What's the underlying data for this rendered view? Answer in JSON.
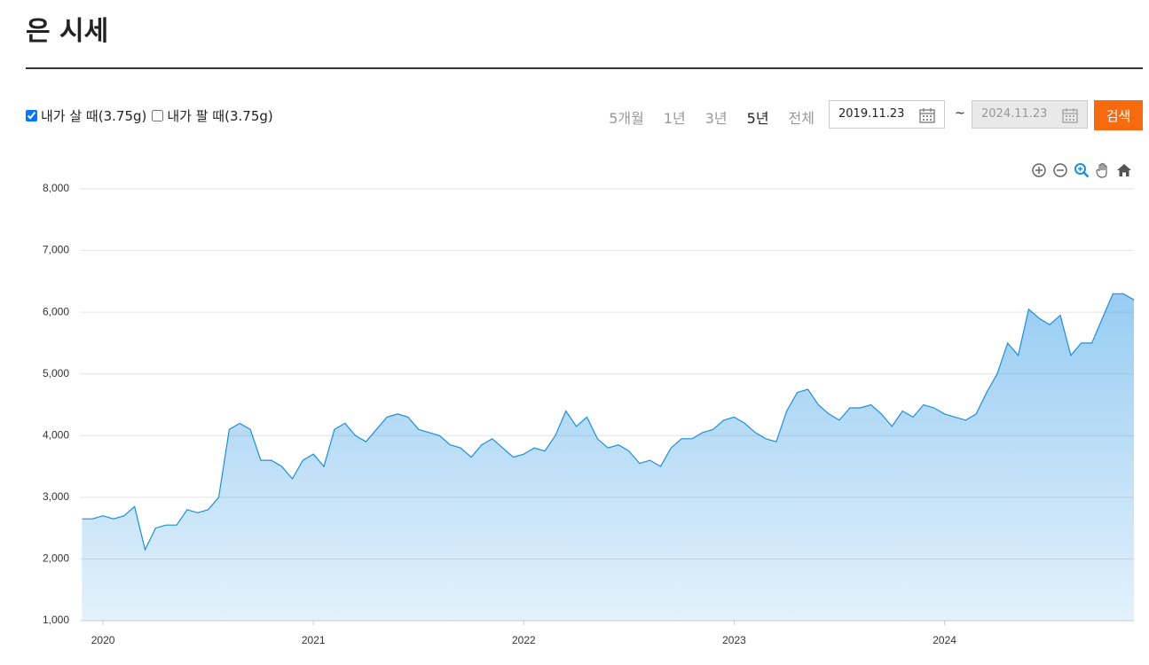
{
  "header": {
    "title": "은 시세"
  },
  "controls": {
    "options": [
      {
        "label": "내가 살 때(3.75g)",
        "checked": true
      },
      {
        "label": "내가 팔 때(3.75g)",
        "checked": false
      }
    ],
    "periods": [
      "5개월",
      "1년",
      "3년",
      "5년",
      "전체"
    ],
    "active_period": 3,
    "start_date": "2019.11.23",
    "separator": "~",
    "end_date": "2024.11.23",
    "search": "검색"
  },
  "chart_data": {
    "type": "area",
    "color": "#1a8fe3",
    "grid": true,
    "xlim": [
      2019.89,
      2024.9
    ],
    "xticks": [
      2020,
      2021,
      2022,
      2023,
      2024
    ],
    "ylim": [
      1000,
      8000
    ],
    "yticks": [
      {
        "value": 1000,
        "label": "1,000"
      },
      {
        "value": 2000,
        "label": "2,000"
      },
      {
        "value": 3000,
        "label": "3,000"
      },
      {
        "value": 4000,
        "label": "4,000"
      },
      {
        "value": 5000,
        "label": "5,000"
      },
      {
        "value": 6000,
        "label": "6,000"
      },
      {
        "value": 7000,
        "label": "7,000"
      },
      {
        "value": 8000,
        "label": "8,000"
      }
    ],
    "x": [
      2019.9,
      2019.95,
      2020.0,
      2020.05,
      2020.1,
      2020.15,
      2020.2,
      2020.25,
      2020.3,
      2020.35,
      2020.4,
      2020.45,
      2020.5,
      2020.55,
      2020.6,
      2020.65,
      2020.7,
      2020.75,
      2020.8,
      2020.85,
      2020.9,
      2020.95,
      2021.0,
      2021.05,
      2021.1,
      2021.15,
      2021.2,
      2021.25,
      2021.3,
      2021.35,
      2021.4,
      2021.45,
      2021.5,
      2021.55,
      2021.6,
      2021.65,
      2021.7,
      2021.75,
      2021.8,
      2021.85,
      2021.9,
      2021.95,
      2022.0,
      2022.05,
      2022.1,
      2022.15,
      2022.2,
      2022.25,
      2022.3,
      2022.35,
      2022.4,
      2022.45,
      2022.5,
      2022.55,
      2022.6,
      2022.65,
      2022.7,
      2022.75,
      2022.8,
      2022.85,
      2022.9,
      2022.95,
      2023.0,
      2023.05,
      2023.1,
      2023.15,
      2023.2,
      2023.25,
      2023.3,
      2023.35,
      2023.4,
      2023.45,
      2023.5,
      2023.55,
      2023.6,
      2023.65,
      2023.7,
      2023.75,
      2023.8,
      2023.85,
      2023.9,
      2023.95,
      2024.0,
      2024.05,
      2024.1,
      2024.15,
      2024.2,
      2024.25,
      2024.3,
      2024.35,
      2024.4,
      2024.45,
      2024.5,
      2024.55,
      2024.6,
      2024.65,
      2024.7,
      2024.75,
      2024.8,
      2024.85,
      2024.9
    ],
    "values": [
      2650,
      2650,
      2700,
      2650,
      2700,
      2850,
      2150,
      2500,
      2550,
      2550,
      2800,
      2750,
      2800,
      3000,
      4100,
      4200,
      4100,
      3600,
      3600,
      3500,
      3300,
      3600,
      3700,
      3500,
      4100,
      4200,
      4000,
      3900,
      4100,
      4300,
      4350,
      4300,
      4100,
      4050,
      4000,
      3850,
      3800,
      3650,
      3850,
      3950,
      3800,
      3650,
      3700,
      3800,
      3750,
      4000,
      4400,
      4150,
      4300,
      3950,
      3800,
      3850,
      3750,
      3550,
      3600,
      3500,
      3800,
      3950,
      3950,
      4050,
      4100,
      4250,
      4300,
      4200,
      4050,
      3950,
      3900,
      4400,
      4700,
      4750,
      4500,
      4350,
      4250,
      4450,
      4450,
      4500,
      4350,
      4150,
      4400,
      4300,
      4500,
      4450,
      4350,
      4300,
      4250,
      4350,
      4700,
      5000,
      5500,
      5300,
      6050,
      5900,
      5800,
      5950,
      5300,
      5500,
      5500,
      5900,
      6300,
      6300,
      6200
    ]
  }
}
